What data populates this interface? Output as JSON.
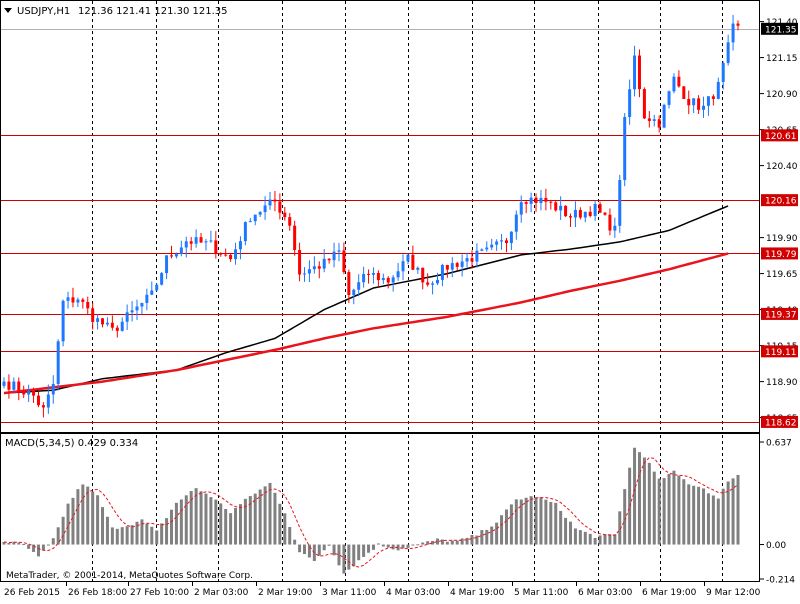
{
  "header": {
    "symbol_label": "USDJPY,H1",
    "ohlc_label": "121.36 121.41 121.30 121.35"
  },
  "macd_panel": {
    "label": "MACD(5,34,5) 0.429 0.334",
    "copyright": "MetaTrader, © 2001-2014, MetaQuotes Software Corp."
  },
  "colors": {
    "background": "#ffffff",
    "grid": "#000000",
    "bull": "#1e78ff",
    "bear": "#ff0000",
    "ma_fast": "#000000",
    "ma_slow": "#e8141e",
    "levels": "#d00000",
    "level_label_bg": "#d00000",
    "current_label_bg": "#000000",
    "macd_bars": "#808080",
    "macd_signal": "#e8141e"
  },
  "chart_data": [
    {
      "type": "candlestick",
      "symbol": "USDJPY",
      "timeframe": "H1",
      "ylim": [
        118.55,
        121.55
      ],
      "y_ticks": [
        "121.40",
        "121.15",
        "120.90",
        "120.65",
        "120.40",
        "119.90",
        "119.65",
        "119.40",
        "119.15",
        "118.90",
        "118.65"
      ],
      "y_tick_values": [
        121.4,
        121.15,
        120.9,
        120.65,
        120.4,
        119.9,
        119.65,
        119.4,
        119.15,
        118.9,
        118.65
      ],
      "x_labels": [
        "26 Feb 2015",
        "26 Feb 18:00",
        "27 Feb 10:00",
        "2 Mar 03:00",
        "2 Mar 19:00",
        "3 Mar 11:00",
        "4 Mar 03:00",
        "4 Mar 19:00",
        "5 Mar 11:00",
        "6 Mar 03:00",
        "6 Mar 19:00",
        "9 Mar 12:00"
      ],
      "bar_count": 150,
      "close_anchors": [
        [
          0,
          118.9
        ],
        [
          3,
          118.85
        ],
        [
          6,
          118.8
        ],
        [
          8,
          118.7
        ],
        [
          10,
          118.88
        ],
        [
          12,
          119.45
        ],
        [
          15,
          119.48
        ],
        [
          18,
          119.35
        ],
        [
          22,
          119.25
        ],
        [
          26,
          119.38
        ],
        [
          30,
          119.5
        ],
        [
          33,
          119.75
        ],
        [
          37,
          119.88
        ],
        [
          42,
          119.85
        ],
        [
          46,
          119.75
        ],
        [
          50,
          120.05
        ],
        [
          55,
          120.15
        ],
        [
          58,
          120.0
        ],
        [
          60,
          119.65
        ],
        [
          65,
          119.72
        ],
        [
          68,
          119.8
        ],
        [
          70,
          119.5
        ],
        [
          74,
          119.65
        ],
        [
          78,
          119.6
        ],
        [
          82,
          119.75
        ],
        [
          86,
          119.58
        ],
        [
          90,
          119.7
        ],
        [
          94,
          119.75
        ],
        [
          98,
          119.8
        ],
        [
          102,
          119.88
        ],
        [
          105,
          120.18
        ],
        [
          110,
          120.15
        ],
        [
          115,
          120.05
        ],
        [
          120,
          120.1
        ],
        [
          124,
          119.95
        ],
        [
          126,
          120.7
        ],
        [
          128,
          121.15
        ],
        [
          130,
          120.75
        ],
        [
          133,
          120.7
        ],
        [
          136,
          121.0
        ],
        [
          139,
          120.85
        ],
        [
          142,
          120.8
        ],
        [
          145,
          120.95
        ],
        [
          148,
          121.35
        ],
        [
          149,
          121.35
        ]
      ],
      "moving_averages": [
        {
          "color": "#000000",
          "anchors": [
            [
              0,
              118.82
            ],
            [
              10,
              118.84
            ],
            [
              20,
              118.92
            ],
            [
              35,
              118.98
            ],
            [
              45,
              119.1
            ],
            [
              55,
              119.2
            ],
            [
              65,
              119.4
            ],
            [
              75,
              119.55
            ],
            [
              90,
              119.65
            ],
            [
              105,
              119.78
            ],
            [
              115,
              119.82
            ],
            [
              125,
              119.87
            ],
            [
              135,
              119.95
            ],
            [
              147,
              120.12
            ]
          ]
        },
        {
          "color": "#e8141e",
          "anchors": [
            [
              0,
              118.82
            ],
            [
              10,
              118.86
            ],
            [
              20,
              118.9
            ],
            [
              35,
              118.98
            ],
            [
              45,
              119.05
            ],
            [
              55,
              119.12
            ],
            [
              65,
              119.2
            ],
            [
              75,
              119.27
            ],
            [
              90,
              119.35
            ],
            [
              105,
              119.45
            ],
            [
              115,
              119.53
            ],
            [
              125,
              119.6
            ],
            [
              135,
              119.68
            ],
            [
              147,
              119.79
            ]
          ]
        }
      ],
      "levels": [
        {
          "value": 120.61,
          "label": "120.61"
        },
        {
          "value": 120.16,
          "label": "120.16"
        },
        {
          "value": 119.79,
          "label": "119.79"
        },
        {
          "value": 119.37,
          "label": "119.37"
        },
        {
          "value": 119.11,
          "label": "119.11"
        },
        {
          "value": 118.62,
          "label": "118.62"
        }
      ],
      "current_price": {
        "value": 121.35,
        "label": "121.35"
      }
    },
    {
      "type": "bar",
      "indicator": "MACD(5,34,5)",
      "ylim": [
        -0.214,
        0.637
      ],
      "y_ticks": [
        "0.637",
        "0.00",
        "-0.214"
      ],
      "y_tick_values": [
        0.637,
        0.0,
        -0.214
      ],
      "macd_anchors": [
        [
          0,
          0.02
        ],
        [
          4,
          0.0
        ],
        [
          7,
          -0.08
        ],
        [
          10,
          0.03
        ],
        [
          13,
          0.25
        ],
        [
          16,
          0.38
        ],
        [
          19,
          0.3
        ],
        [
          22,
          0.1
        ],
        [
          25,
          0.12
        ],
        [
          28,
          0.15
        ],
        [
          31,
          0.08
        ],
        [
          35,
          0.26
        ],
        [
          39,
          0.35
        ],
        [
          42,
          0.3
        ],
        [
          46,
          0.2
        ],
        [
          50,
          0.3
        ],
        [
          54,
          0.38
        ],
        [
          57,
          0.2
        ],
        [
          60,
          -0.05
        ],
        [
          63,
          -0.1
        ],
        [
          66,
          0.0
        ],
        [
          69,
          -0.18
        ],
        [
          72,
          -0.1
        ],
        [
          76,
          0.0
        ],
        [
          80,
          -0.03
        ],
        [
          84,
          0.0
        ],
        [
          88,
          0.03
        ],
        [
          92,
          0.02
        ],
        [
          96,
          0.06
        ],
        [
          100,
          0.14
        ],
        [
          104,
          0.28
        ],
        [
          108,
          0.3
        ],
        [
          112,
          0.25
        ],
        [
          116,
          0.1
        ],
        [
          120,
          0.05
        ],
        [
          124,
          0.06
        ],
        [
          126,
          0.35
        ],
        [
          128,
          0.6
        ],
        [
          130,
          0.55
        ],
        [
          133,
          0.4
        ],
        [
          136,
          0.45
        ],
        [
          139,
          0.38
        ],
        [
          142,
          0.35
        ],
        [
          145,
          0.28
        ],
        [
          147,
          0.4
        ],
        [
          149,
          0.43
        ]
      ],
      "signal_color": "#e8141e",
      "bar_color": "#808080"
    }
  ]
}
